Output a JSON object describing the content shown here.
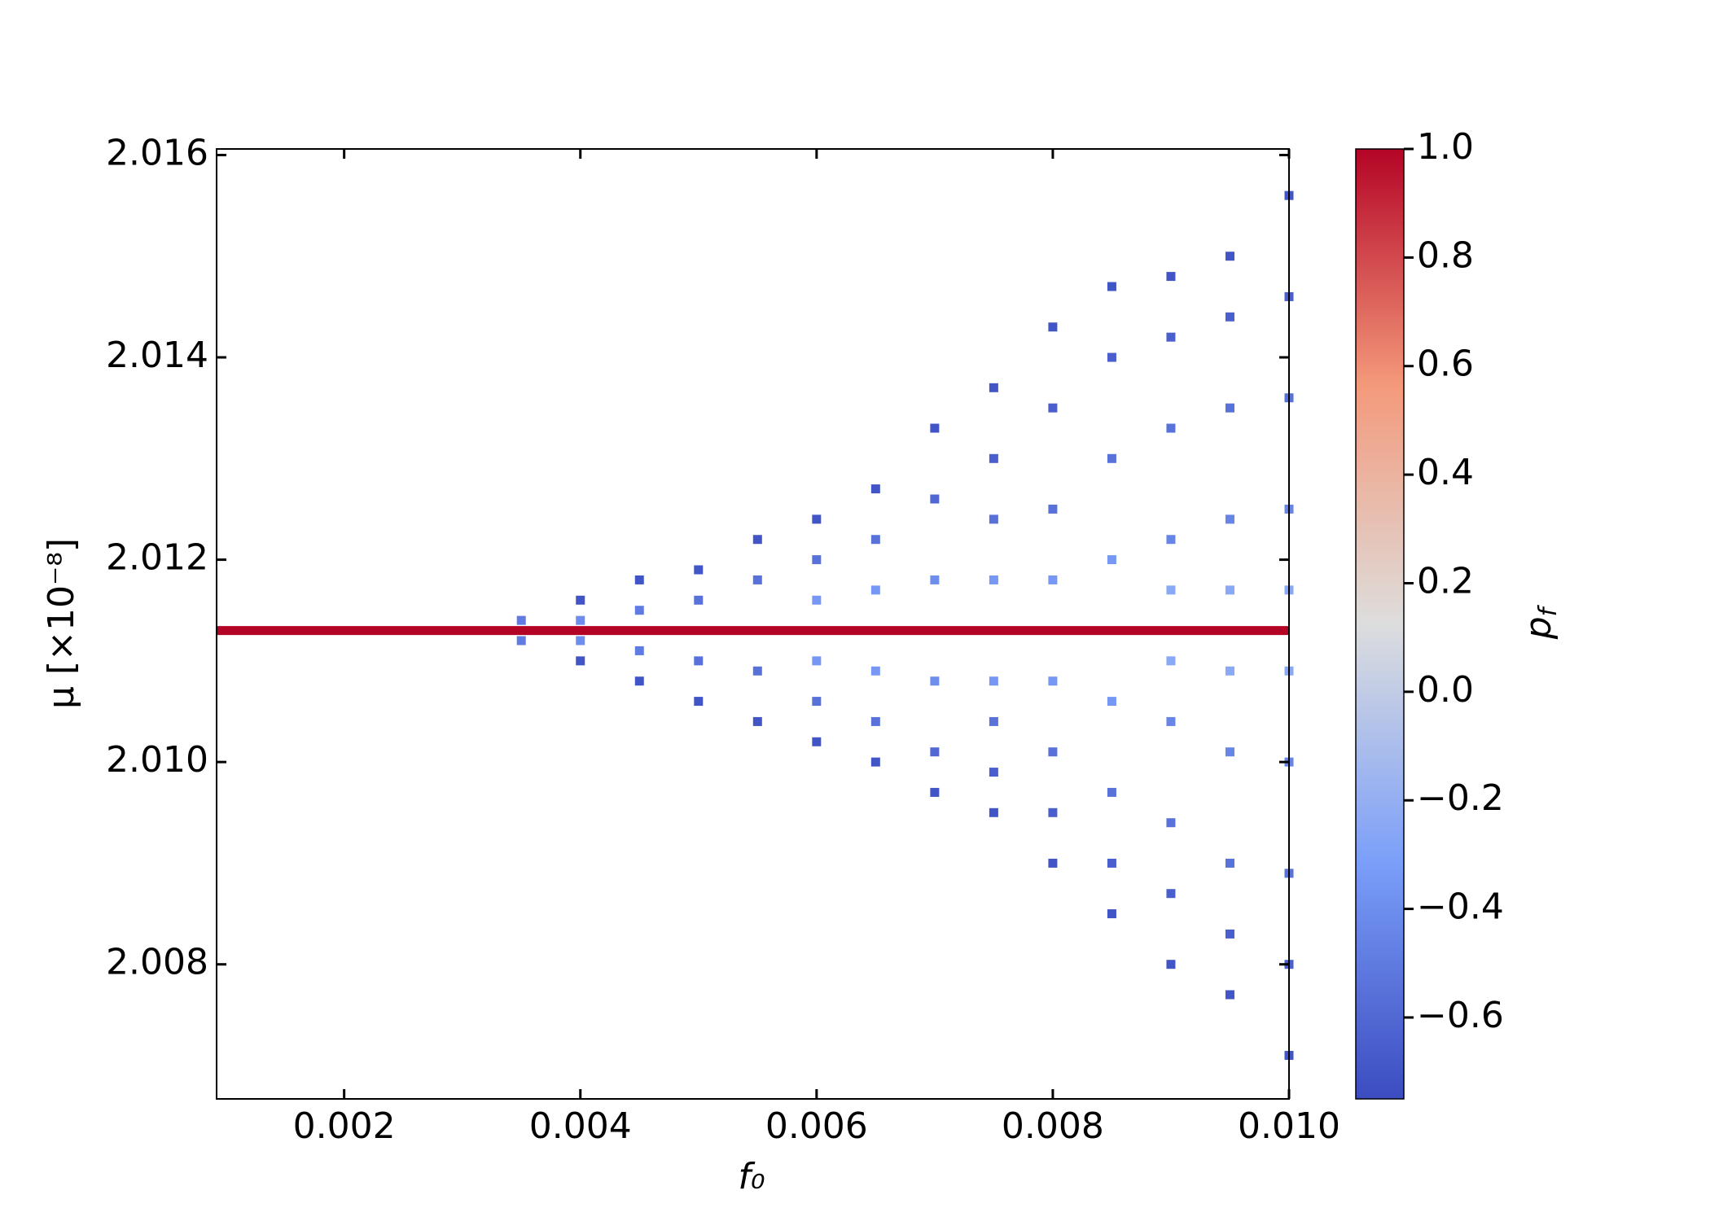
{
  "chart_data": {
    "type": "scatter",
    "x_label": "f₀",
    "y_label": "μ  [×10⁻⁸]",
    "xlim": [
      0.00092,
      0.01
    ],
    "ylim": [
      2.00667,
      2.01606
    ],
    "xticks": [
      0.002,
      0.004,
      0.006,
      0.008,
      {
        "value": 0.01,
        "label": "0.010"
      }
    ],
    "yticks": [
      2.008,
      {
        "value": 2.01,
        "label": "2.010"
      },
      2.012,
      2.014,
      2.016
    ],
    "grid": false,
    "cmap": "coolwarm",
    "colorbar": {
      "label": "p",
      "label_subscript": "f",
      "clim": [
        -0.75,
        1.0
      ],
      "ticks": [
        {
          "value": -0.6,
          "label": "−0.6"
        },
        {
          "value": -0.4,
          "label": "−0.4"
        },
        {
          "value": -0.2,
          "label": "−0.2"
        },
        {
          "value": 0,
          "label": "0.0"
        },
        0.2,
        0.4,
        0.6,
        0.8,
        {
          "value": 1,
          "label": "1.0"
        }
      ]
    },
    "series": [
      {
        "marker": "square",
        "line": false,
        "x": [
          0.0035,
          0.0035,
          0.004,
          0.004,
          0.004,
          0.004,
          0.0045,
          0.0045,
          0.0045,
          0.0045,
          0.005,
          0.005,
          0.005,
          0.005,
          0.0055,
          0.0055,
          0.0055,
          0.0055,
          0.006,
          0.006,
          0.006,
          0.006,
          0.006,
          0.006,
          0.0065,
          0.0065,
          0.0065,
          0.0065,
          0.0065,
          0.0065,
          0.007,
          0.007,
          0.007,
          0.007,
          0.007,
          0.007,
          0.0075,
          0.0075,
          0.0075,
          0.0075,
          0.0075,
          0.0075,
          0.0075,
          0.0075,
          0.008,
          0.008,
          0.008,
          0.008,
          0.008,
          0.008,
          0.008,
          0.008,
          0.0085,
          0.0085,
          0.0085,
          0.0085,
          0.0085,
          0.0085,
          0.0085,
          0.0085,
          0.009,
          0.009,
          0.009,
          0.009,
          0.009,
          0.009,
          0.009,
          0.009,
          0.009,
          0.009,
          0.0095,
          0.0095,
          0.0095,
          0.0095,
          0.0095,
          0.0095,
          0.0095,
          0.0095,
          0.0095,
          0.0095,
          0.01,
          0.01,
          0.01,
          0.01,
          0.01,
          0.01,
          0.01,
          0.01,
          0.01,
          0.01
        ],
        "values": [
          2.0114,
          2.0112,
          2.0116,
          2.011,
          2.0114,
          2.0112,
          2.0118,
          2.0108,
          2.0115,
          2.0111,
          2.0119,
          2.0106,
          2.0116,
          2.011,
          2.0122,
          2.0104,
          2.0118,
          2.0109,
          2.0124,
          2.0102,
          2.012,
          2.0106,
          2.0116,
          2.011,
          2.0127,
          2.01,
          2.0122,
          2.0104,
          2.0117,
          2.0109,
          2.0133,
          2.0097,
          2.0126,
          2.0101,
          2.0118,
          2.0108,
          2.0137,
          2.0095,
          2.013,
          2.0099,
          2.0124,
          2.0104,
          2.0118,
          2.0108,
          2.0143,
          2.009,
          2.0135,
          2.0095,
          2.0125,
          2.0101,
          2.0118,
          2.0108,
          2.0147,
          2.0085,
          2.014,
          2.009,
          2.013,
          2.0097,
          2.012,
          2.0106,
          2.0148,
          2.008,
          2.0142,
          2.0087,
          2.0133,
          2.0094,
          2.0122,
          2.0104,
          2.0117,
          2.011,
          2.015,
          2.0077,
          2.0144,
          2.0083,
          2.0135,
          2.009,
          2.0124,
          2.0101,
          2.0117,
          2.0109,
          2.0156,
          2.0071,
          2.0146,
          2.008,
          2.0136,
          2.0089,
          2.0125,
          2.01,
          2.0117,
          2.0109
        ],
        "c": [
          -0.5,
          -0.5,
          -0.7,
          -0.7,
          -0.4,
          -0.4,
          -0.7,
          -0.7,
          -0.5,
          -0.5,
          -0.7,
          -0.7,
          -0.55,
          -0.55,
          -0.7,
          -0.7,
          -0.55,
          -0.55,
          -0.7,
          -0.7,
          -0.55,
          -0.55,
          -0.35,
          -0.35,
          -0.7,
          -0.7,
          -0.55,
          -0.55,
          -0.35,
          -0.35,
          -0.7,
          -0.7,
          -0.6,
          -0.6,
          -0.4,
          -0.4,
          -0.7,
          -0.7,
          -0.65,
          -0.65,
          -0.55,
          -0.55,
          -0.35,
          -0.35,
          -0.7,
          -0.7,
          -0.65,
          -0.65,
          -0.55,
          -0.55,
          -0.35,
          -0.35,
          -0.7,
          -0.7,
          -0.65,
          -0.65,
          -0.55,
          -0.55,
          -0.35,
          -0.35,
          -0.7,
          -0.7,
          -0.65,
          -0.65,
          -0.55,
          -0.55,
          -0.45,
          -0.45,
          -0.25,
          -0.25,
          -0.7,
          -0.7,
          -0.65,
          -0.65,
          -0.55,
          -0.55,
          -0.45,
          -0.45,
          -0.25,
          -0.25,
          -0.7,
          -0.7,
          -0.65,
          -0.65,
          -0.55,
          -0.55,
          -0.45,
          -0.45,
          -0.25,
          -0.25
        ]
      },
      {
        "marker": "square",
        "line": true,
        "x": [
          0.00092,
          0.01
        ],
        "values": [
          2.0113,
          2.0113
        ],
        "c": [
          1,
          1
        ]
      }
    ]
  }
}
